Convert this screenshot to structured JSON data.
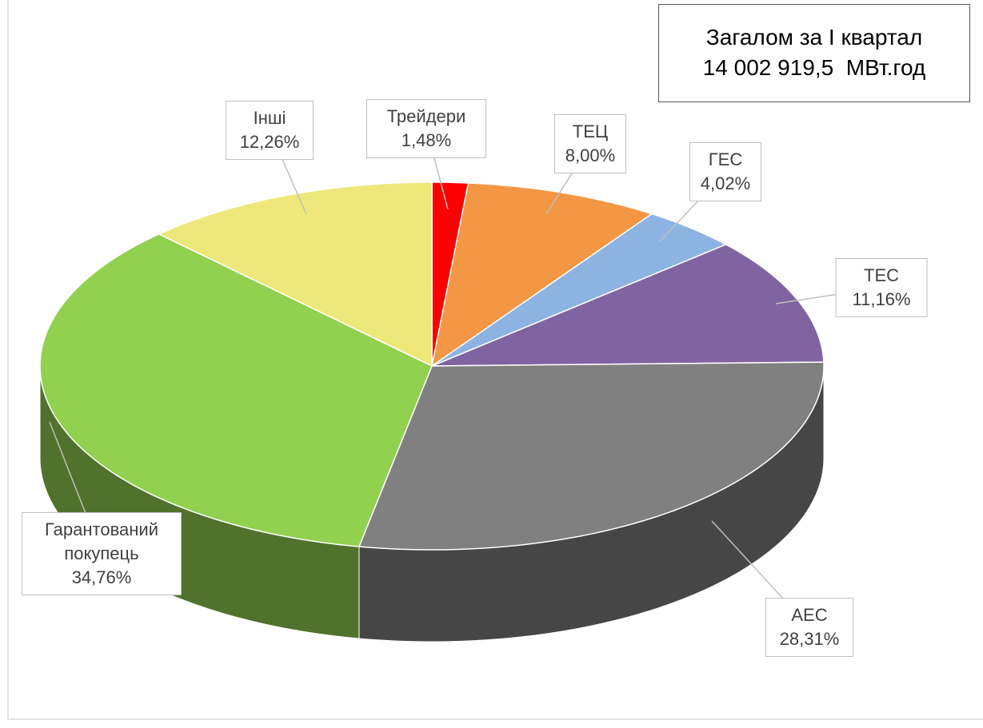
{
  "chart_data": {
    "type": "pie3d",
    "categories": [
      "Трейдери",
      "ТЕЦ",
      "ГЕС",
      "ТЕС",
      "АЕС",
      "Гарантований покупець",
      "Інші"
    ],
    "values": [
      1.48,
      8.0,
      4.02,
      11.16,
      28.31,
      34.76,
      12.26
    ],
    "value_labels": [
      "1,48%",
      "8,00%",
      "4,02%",
      "11,16%",
      "28,31%",
      "34,76%",
      "12,26%"
    ],
    "colors": [
      "#ff0000",
      "#f39744",
      "#8db3e2",
      "#8064a2",
      "#808080",
      "#92d050",
      "#eee87a"
    ],
    "annotation": [
      "Загалом за I квартал",
      "14 002 919,5  МВт.год"
    ]
  }
}
